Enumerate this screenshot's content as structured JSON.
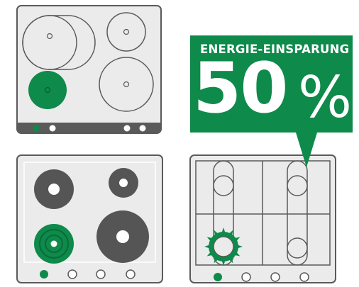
{
  "callout": {
    "heading": "ENERGIE-EINSPARUNG",
    "value": "50",
    "unit": "%"
  },
  "colors": {
    "accent_green": "#0e8a4b",
    "outline_gray": "#5a5a5a",
    "panel_fill": "#ebebeb",
    "burner_dark": "#555555",
    "control_strip": "#5a5a5a"
  },
  "icons": [
    "stove-radiant-icon",
    "stove-hotplate-icon",
    "stove-gas-icon",
    "flame-icon",
    "speech-bubble-icon"
  ]
}
